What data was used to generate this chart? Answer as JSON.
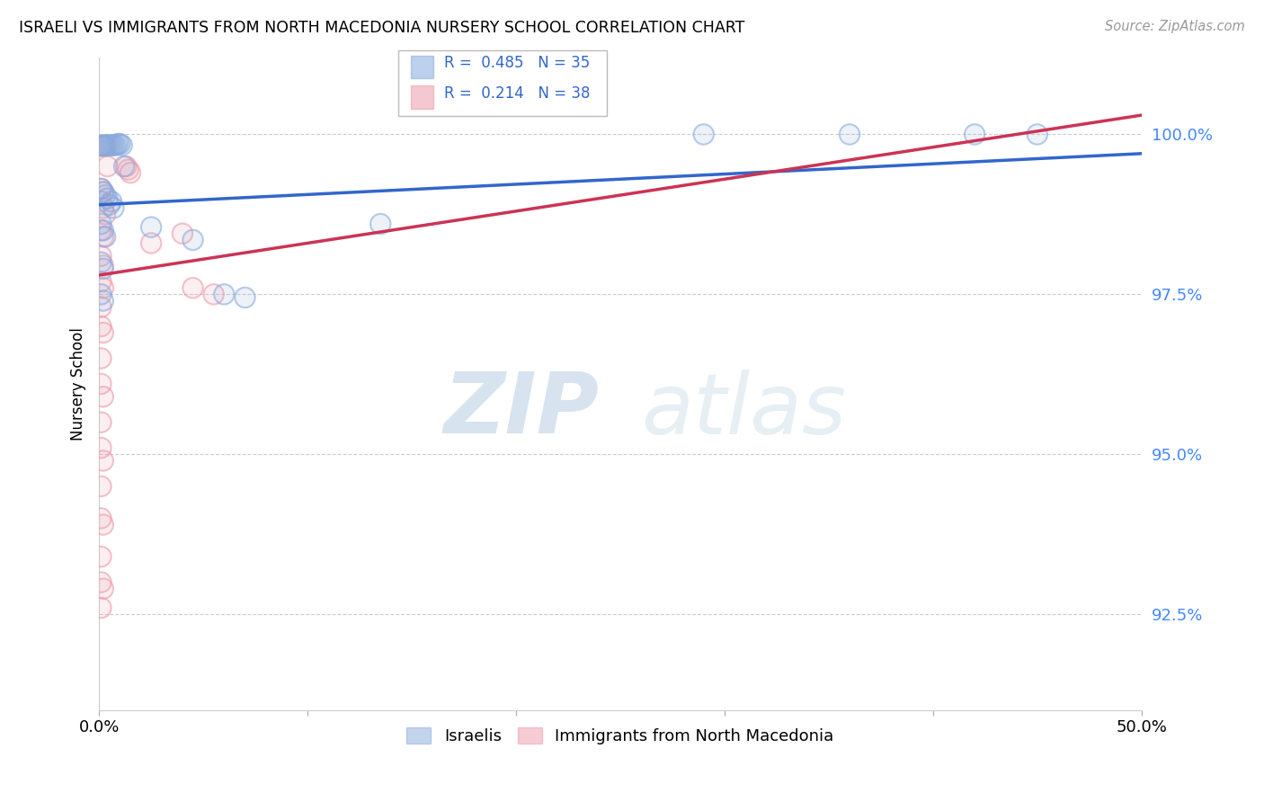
{
  "title": "ISRAELI VS IMMIGRANTS FROM NORTH MACEDONIA NURSERY SCHOOL CORRELATION CHART",
  "source": "Source: ZipAtlas.com",
  "ylabel": "Nursery School",
  "yticks": [
    92.5,
    95.0,
    97.5,
    100.0
  ],
  "ytick_labels": [
    "92.5%",
    "95.0%",
    "97.5%",
    "100.0%"
  ],
  "xlim": [
    0.0,
    0.5
  ],
  "ylim": [
    91.0,
    101.2
  ],
  "legend_blue_R": "0.485",
  "legend_blue_N": "35",
  "legend_pink_R": "0.214",
  "legend_pink_N": "38",
  "legend_label_blue": "Israelis",
  "legend_label_pink": "Immigrants from North Macedonia",
  "blue_color": "#88aadd",
  "pink_color": "#ee99aa",
  "blue_scatter": [
    [
      0.001,
      99.82
    ],
    [
      0.002,
      99.83
    ],
    [
      0.003,
      99.83
    ],
    [
      0.004,
      99.83
    ],
    [
      0.005,
      99.83
    ],
    [
      0.006,
      99.83
    ],
    [
      0.007,
      99.83
    ],
    [
      0.008,
      99.83
    ],
    [
      0.009,
      99.85
    ],
    [
      0.01,
      99.85
    ],
    [
      0.011,
      99.83
    ],
    [
      0.012,
      99.5
    ],
    [
      0.001,
      99.15
    ],
    [
      0.002,
      99.1
    ],
    [
      0.003,
      99.05
    ],
    [
      0.004,
      99.0
    ],
    [
      0.005,
      98.9
    ],
    [
      0.006,
      98.95
    ],
    [
      0.007,
      98.85
    ],
    [
      0.001,
      98.6
    ],
    [
      0.002,
      98.5
    ],
    [
      0.003,
      98.4
    ],
    [
      0.001,
      98.0
    ],
    [
      0.002,
      97.9
    ],
    [
      0.001,
      97.5
    ],
    [
      0.002,
      97.4
    ],
    [
      0.025,
      98.55
    ],
    [
      0.045,
      98.35
    ],
    [
      0.06,
      97.5
    ],
    [
      0.07,
      97.45
    ],
    [
      0.135,
      98.6
    ],
    [
      0.29,
      100.0
    ],
    [
      0.36,
      100.0
    ],
    [
      0.42,
      100.0
    ],
    [
      0.45,
      100.0
    ]
  ],
  "pink_scatter": [
    [
      0.001,
      99.82
    ],
    [
      0.002,
      99.82
    ],
    [
      0.003,
      99.82
    ],
    [
      0.004,
      99.5
    ],
    [
      0.001,
      99.15
    ],
    [
      0.002,
      99.1
    ],
    [
      0.001,
      98.95
    ],
    [
      0.002,
      98.85
    ],
    [
      0.003,
      98.75
    ],
    [
      0.001,
      98.5
    ],
    [
      0.002,
      98.4
    ],
    [
      0.001,
      98.1
    ],
    [
      0.002,
      97.95
    ],
    [
      0.001,
      97.7
    ],
    [
      0.002,
      97.6
    ],
    [
      0.001,
      97.3
    ],
    [
      0.001,
      97.0
    ],
    [
      0.002,
      96.9
    ],
    [
      0.001,
      96.5
    ],
    [
      0.001,
      96.1
    ],
    [
      0.002,
      95.9
    ],
    [
      0.001,
      95.5
    ],
    [
      0.001,
      95.1
    ],
    [
      0.002,
      94.9
    ],
    [
      0.001,
      94.5
    ],
    [
      0.001,
      94.0
    ],
    [
      0.002,
      93.9
    ],
    [
      0.001,
      93.4
    ],
    [
      0.001,
      93.0
    ],
    [
      0.002,
      92.9
    ],
    [
      0.001,
      92.6
    ],
    [
      0.025,
      98.3
    ],
    [
      0.04,
      98.45
    ],
    [
      0.045,
      97.6
    ],
    [
      0.055,
      97.5
    ],
    [
      0.013,
      99.5
    ],
    [
      0.014,
      99.45
    ],
    [
      0.015,
      99.4
    ]
  ],
  "blue_line_x": [
    0.0,
    0.5
  ],
  "blue_line_y": [
    98.9,
    99.7
  ],
  "pink_line_x": [
    0.0,
    0.5
  ],
  "pink_line_y": [
    97.8,
    100.3
  ],
  "watermark_zip": "ZIP",
  "watermark_atlas": "atlas",
  "background_color": "#ffffff",
  "grid_color": "#cccccc"
}
